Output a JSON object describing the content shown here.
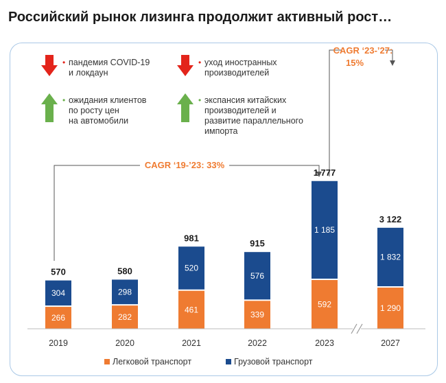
{
  "page": {
    "title": "Российский рынок лизинга продолжит активный рост…"
  },
  "colors": {
    "passenger": "#ef7b31",
    "freight": "#1b4b8e",
    "down_arrow": "#e3241b",
    "up_arrow": "#6ab04c",
    "accent": "#ef7b31",
    "panel_border": "#a9c8e6"
  },
  "factors": [
    {
      "direction": "down",
      "icon": "red-down-arrow-icon",
      "lines": [
        "пандемия COVID-19",
        "и локдаун"
      ]
    },
    {
      "direction": "down",
      "icon": "red-down-arrow-icon",
      "lines": [
        "уход иностранных",
        "производителей"
      ]
    },
    {
      "direction": "up",
      "icon": "green-up-arrow-icon",
      "lines": [
        "ожидания клиентов",
        "по росту цен",
        "на автомобили"
      ]
    },
    {
      "direction": "up",
      "icon": "green-up-arrow-icon",
      "lines": [
        "экспансия китайских",
        "производителей и",
        "развитие параллельного",
        "импорта"
      ]
    }
  ],
  "annotations": {
    "cagr_19_23": "CAGR ‘19-’23: 33%",
    "cagr_23_27_line1": "CAGR ‘23-’27:",
    "cagr_23_27_line2": "15%"
  },
  "chart_data": {
    "type": "bar",
    "stacked": true,
    "categories": [
      "2019",
      "2020",
      "2021",
      "2022",
      "2023",
      "2027"
    ],
    "series": [
      {
        "name": "Легковой транспорт",
        "values": [
          266,
          282,
          461,
          339,
          592,
          1290
        ],
        "labels": [
          "266",
          "282",
          "461",
          "339",
          "592",
          "1 290"
        ]
      },
      {
        "name": "Грузовой транспорт",
        "values": [
          304,
          298,
          520,
          576,
          1185,
          1832
        ],
        "labels": [
          "304",
          "298",
          "520",
          "576",
          "1 185",
          "1 832"
        ]
      }
    ],
    "totals": [
      570,
      580,
      981,
      915,
      1777,
      3122
    ],
    "total_labels": [
      "570",
      "580",
      "981",
      "915",
      "1 777",
      "3 122"
    ],
    "axis_break_between": [
      "2023",
      "2027"
    ],
    "legend_position": "bottom",
    "ylim": [
      0,
      3122
    ]
  }
}
